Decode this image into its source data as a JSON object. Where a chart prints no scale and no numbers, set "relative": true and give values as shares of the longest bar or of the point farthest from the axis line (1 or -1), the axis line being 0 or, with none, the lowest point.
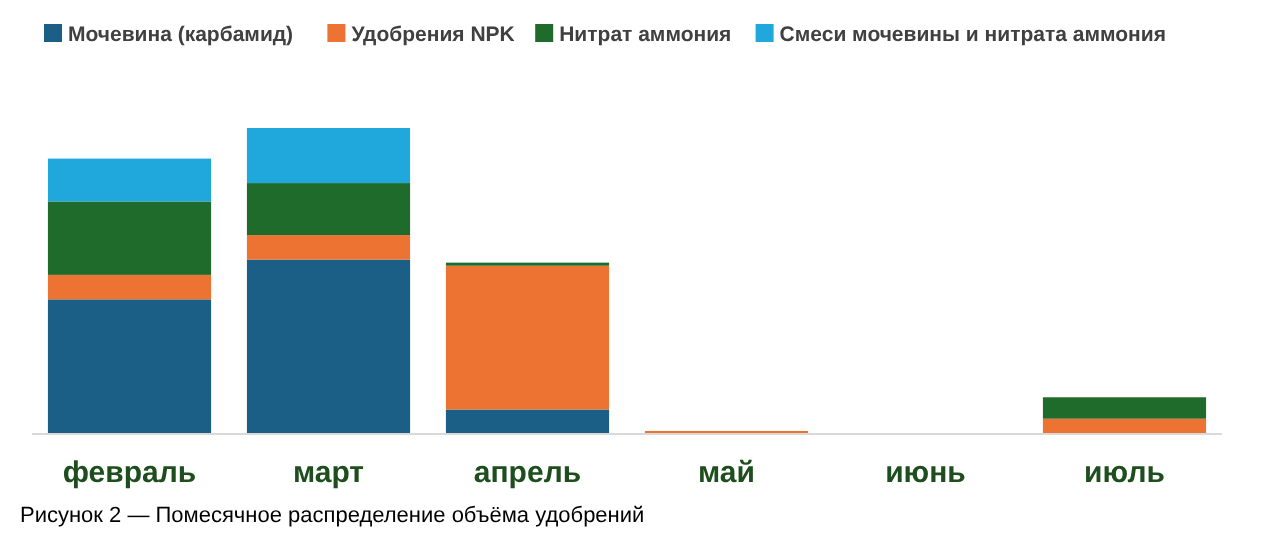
{
  "chart_data": {
    "type": "bar",
    "stacked": true,
    "relative": true,
    "legend": "top",
    "categories": [
      "февраль",
      "март",
      "апрель",
      "май",
      "июнь",
      "июль"
    ],
    "series": [
      {
        "name": "Мочевина (карбамид)",
        "color": "#1c5f86",
        "values": [
          0.44,
          0.57,
          0.08,
          0,
          0,
          0
        ]
      },
      {
        "name": "Удобрения NPK",
        "color": "#ec7332",
        "values": [
          0.08,
          0.08,
          0.47,
          0.01,
          0,
          0.05
        ]
      },
      {
        "name": "Нитрат аммония",
        "color": "#1f6b2c",
        "values": [
          0.24,
          0.17,
          0.01,
          0,
          0,
          0.07
        ]
      },
      {
        "name": "Смеси мочевины и нитрата аммония",
        "color": "#20a7dc",
        "values": [
          0.14,
          0.18,
          0,
          0,
          0,
          0
        ]
      }
    ],
    "annotations": [
      "Рисунок 2 — Помесячное распределение объёма удобрений"
    ]
  }
}
